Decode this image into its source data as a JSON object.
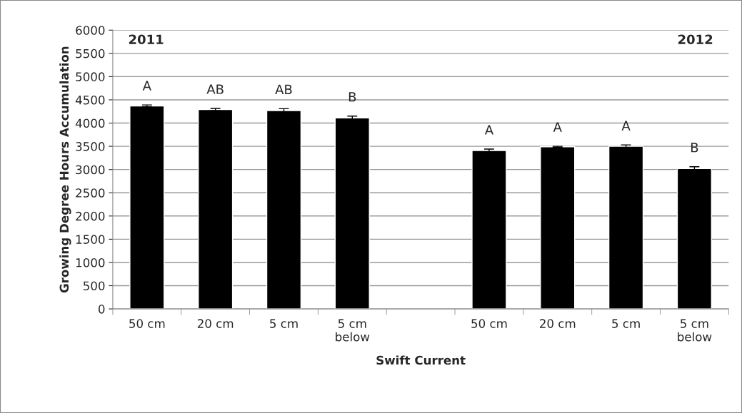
{
  "chart_data": {
    "type": "bar",
    "xlabel": "Swift Current",
    "ylabel": "Growing Degree Hours Accumulation",
    "categories": [
      "50 cm",
      "20 cm",
      "5 cm",
      "5 cm\nbelow",
      null,
      "50 cm",
      "20 cm",
      "5 cm",
      "5 cm\nbelow"
    ],
    "values": [
      4370,
      4290,
      4270,
      4110,
      null,
      3410,
      3490,
      3500,
      3020
    ],
    "errors": [
      20,
      25,
      40,
      40,
      null,
      30,
      10,
      30,
      40
    ],
    "value_labels": [
      "A",
      "AB",
      "AB",
      "B",
      null,
      "A",
      "A",
      "A",
      "B"
    ],
    "color": "#000000",
    "ylim": [
      0,
      6000
    ],
    "yticks": [
      0,
      500,
      1000,
      1500,
      2000,
      2500,
      3000,
      3500,
      4000,
      4500,
      5000,
      5500,
      6000
    ],
    "grid": "y",
    "annotations": [
      "2011",
      "2012"
    ]
  }
}
